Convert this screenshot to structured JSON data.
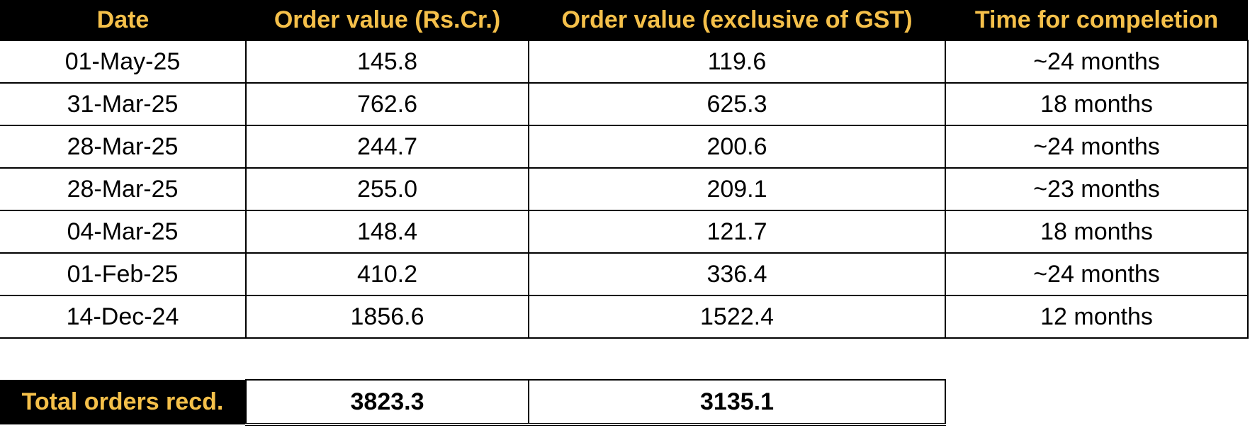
{
  "table": {
    "header": [
      "Date",
      "Order value (Rs.Cr.)",
      "Order value (exclusive of GST)",
      "Time for compeletion"
    ],
    "rows": [
      [
        "01-May-25",
        "145.8",
        "119.6",
        "~24 months"
      ],
      [
        "31-Mar-25",
        "762.6",
        "625.3",
        "18 months"
      ],
      [
        "28-Mar-25",
        "244.7",
        "200.6",
        "~24 months"
      ],
      [
        "28-Mar-25",
        "255.0",
        "209.1",
        "~23 months"
      ],
      [
        "04-Mar-25",
        "148.4",
        "121.7",
        "18 months"
      ],
      [
        "01-Feb-25",
        "410.2",
        "336.4",
        "~24 months"
      ],
      [
        "14-Dec-24",
        "1856.6",
        "1522.4",
        "12 months"
      ]
    ]
  },
  "total": {
    "label": "Total orders recd.",
    "values": [
      "3823.3",
      "3135.1"
    ]
  }
}
